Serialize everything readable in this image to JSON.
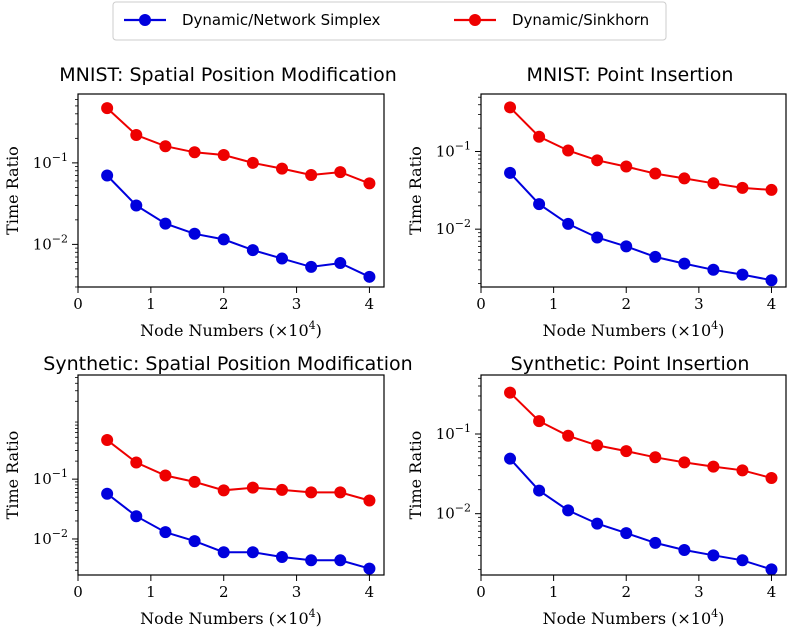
{
  "legend": {
    "placement": "top-center",
    "entries": [
      {
        "label": "Dynamic/Network Simplex",
        "color": "#0000dd"
      },
      {
        "label": "Dynamic/Sinkhorn",
        "color": "#ee0000"
      }
    ]
  },
  "chart_data": [
    {
      "type": "line",
      "title": "MNIST: Spatial Position Modification",
      "xlabel_text": "Node Numbers (",
      "xlabel_math": "×10",
      "xlabel_exp": "4",
      "xlabel_close": ")",
      "ylabel": "Time Ratio",
      "yscale": "log",
      "xlim": [
        0,
        4.2
      ],
      "ylim": [
        0.003,
        0.7
      ],
      "xticks": [
        "0",
        "1",
        "2",
        "3",
        "4"
      ],
      "ytick_base": "10",
      "ytick_exps": [
        "−1",
        "−2"
      ],
      "ytick_values": [
        0.1,
        0.01
      ],
      "x": [
        0.4,
        0.8,
        1.2,
        1.6,
        2.0,
        2.4,
        2.8,
        3.2,
        3.6,
        4.0
      ],
      "series": [
        {
          "legend_index": 0,
          "values": [
            0.07,
            0.03,
            0.018,
            0.0135,
            0.0115,
            0.0085,
            0.0067,
            0.0053,
            0.0059,
            0.004
          ]
        },
        {
          "legend_index": 1,
          "values": [
            0.47,
            0.22,
            0.16,
            0.135,
            0.125,
            0.1,
            0.085,
            0.071,
            0.077,
            0.056
          ]
        }
      ]
    },
    {
      "type": "line",
      "title": "MNIST: Point Insertion",
      "xlabel_text": "Node Numbers (",
      "xlabel_math": "×10",
      "xlabel_exp": "4",
      "xlabel_close": ")",
      "ylabel": "Time Ratio",
      "yscale": "log",
      "xlim": [
        0,
        4.2
      ],
      "ylim": [
        0.0018,
        0.55
      ],
      "xticks": [
        "0",
        "1",
        "2",
        "3",
        "4"
      ],
      "ytick_base": "10",
      "ytick_exps": [
        "−1",
        "−2"
      ],
      "ytick_values": [
        0.1,
        0.01
      ],
      "x": [
        0.4,
        0.8,
        1.2,
        1.6,
        2.0,
        2.4,
        2.8,
        3.2,
        3.6,
        4.0
      ],
      "series": [
        {
          "legend_index": 0,
          "values": [
            0.053,
            0.021,
            0.0117,
            0.0078,
            0.006,
            0.0044,
            0.0036,
            0.003,
            0.0026,
            0.0022
          ]
        },
        {
          "legend_index": 1,
          "values": [
            0.37,
            0.155,
            0.103,
            0.077,
            0.064,
            0.052,
            0.045,
            0.039,
            0.034,
            0.032
          ]
        }
      ]
    },
    {
      "type": "line",
      "title": "Synthetic: Spatial Position Modification",
      "xlabel_text": "Node Numbers (",
      "xlabel_math": "×10",
      "xlabel_exp": "4",
      "xlabel_close": ")",
      "ylabel": "Time Ratio",
      "yscale": "log",
      "xlim": [
        0,
        4.2
      ],
      "ylim": [
        0.0025,
        5.5
      ],
      "xticks": [
        "0",
        "1",
        "2",
        "3",
        "4"
      ],
      "ytick_base": "10",
      "ytick_exps": [
        "−1",
        "−2"
      ],
      "ytick_values": [
        0.1,
        0.01
      ],
      "x": [
        0.4,
        0.8,
        1.2,
        1.6,
        2.0,
        2.4,
        2.8,
        3.2,
        3.6,
        4.0
      ],
      "series": [
        {
          "legend_index": 0,
          "values": [
            0.057,
            0.024,
            0.013,
            0.0092,
            0.006,
            0.006,
            0.005,
            0.0044,
            0.0044,
            0.0032
          ]
        },
        {
          "legend_index": 1,
          "values": [
            0.45,
            0.19,
            0.115,
            0.09,
            0.065,
            0.072,
            0.066,
            0.06,
            0.06,
            0.044
          ]
        }
      ]
    },
    {
      "type": "line",
      "title": "Synthetic: Point Insertion",
      "xlabel_text": "Node Numbers (",
      "xlabel_math": "×10",
      "xlabel_exp": "4",
      "xlabel_close": ")",
      "ylabel": "Time Ratio",
      "yscale": "log",
      "xlim": [
        0,
        4.2
      ],
      "ylim": [
        0.0017,
        0.55
      ],
      "xticks": [
        "0",
        "1",
        "2",
        "3",
        "4"
      ],
      "ytick_base": "10",
      "ytick_exps": [
        "−1",
        "−2"
      ],
      "ytick_values": [
        0.1,
        0.01
      ],
      "x": [
        0.4,
        0.8,
        1.2,
        1.6,
        2.0,
        2.4,
        2.8,
        3.2,
        3.6,
        4.0
      ],
      "series": [
        {
          "legend_index": 0,
          "values": [
            0.049,
            0.0195,
            0.011,
            0.0075,
            0.0057,
            0.0043,
            0.0035,
            0.003,
            0.0026,
            0.002
          ]
        },
        {
          "legend_index": 1,
          "values": [
            0.33,
            0.145,
            0.095,
            0.072,
            0.061,
            0.051,
            0.044,
            0.039,
            0.035,
            0.028
          ]
        }
      ]
    }
  ]
}
